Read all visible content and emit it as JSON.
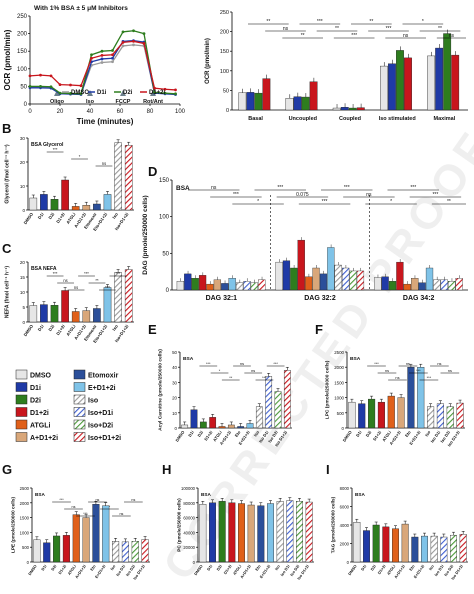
{
  "watermark": "CORRECTED PROOF",
  "colors": {
    "DMSO": "#e6e6e6",
    "D1i": "#1f3aa6",
    "D2i": "#2e7d1e",
    "D1+2i": "#c8161d",
    "ATGLi": "#e0601a",
    "A+D1+2i": "#d9a77a",
    "Etomoxir": "#2b4f9a",
    "E+D1+2i": "#7fc3e8",
    "Iso": "#9a9a9a",
    "Iso+D1i": "#3f5fcf",
    "Iso+D2i": "#4c9a3a",
    "Iso+D1+2i": "#c8161d"
  },
  "legend": {
    "items": [
      {
        "key": "DMSO",
        "label": "DMSO"
      },
      {
        "key": "Etomoxir",
        "label": "Etomoxir"
      },
      {
        "key": "D1i",
        "label": "D1i"
      },
      {
        "key": "E+D1+2i",
        "label": "E+D1+2i"
      },
      {
        "key": "D2i",
        "label": "D2i"
      },
      {
        "key": "Iso",
        "label": "Iso"
      },
      {
        "key": "D1+2i",
        "label": "D1+2i"
      },
      {
        "key": "Iso+D1i",
        "label": "Iso+D1i"
      },
      {
        "key": "ATGLi",
        "label": "ATGLi"
      },
      {
        "key": "Iso+D2i",
        "label": "Iso+D2i"
      },
      {
        "key": "A+D1+2i",
        "label": "A+D1+2i"
      },
      {
        "key": "Iso+D1+2i",
        "label": "Iso+D1+2i"
      }
    ]
  },
  "chart_data": [
    {
      "id": "A-line",
      "type": "line",
      "title": "With 1% BSA ± 5 μM Inhibitors",
      "xlabel": "Time (minutes)",
      "ylabel": "OCR (pmol/min)",
      "xlim": [
        0,
        100
      ],
      "ylim": [
        0,
        250
      ],
      "xticks": [
        0,
        20,
        40,
        60,
        80,
        100
      ],
      "yticks": [
        0,
        50,
        100,
        150,
        200,
        250
      ],
      "injections": [
        {
          "label": "Oligo",
          "x": 18
        },
        {
          "label": "Iso",
          "x": 40
        },
        {
          "label": "FCCP",
          "x": 62
        },
        {
          "label": "Rot/Ant",
          "x": 82
        }
      ],
      "legend": [
        "DMSO",
        "D1i",
        "D2i",
        "D1+2i"
      ],
      "x": [
        0,
        7,
        14,
        20,
        27,
        34,
        41,
        48,
        55,
        62,
        69,
        76,
        83,
        90,
        97
      ],
      "series": [
        {
          "name": "DMSO",
          "color": "#9a9a9a",
          "values": [
            48,
            48,
            47,
            30,
            29,
            28,
            110,
            118,
            120,
            165,
            168,
            165,
            32,
            30,
            28
          ]
        },
        {
          "name": "D1i",
          "color": "#1f3aa6",
          "values": [
            46,
            46,
            45,
            29,
            28,
            27,
            120,
            128,
            130,
            178,
            180,
            176,
            31,
            29,
            27
          ]
        },
        {
          "name": "D2i",
          "color": "#2e7d1e",
          "values": [
            50,
            50,
            49,
            31,
            30,
            29,
            140,
            150,
            152,
            205,
            208,
            200,
            33,
            31,
            29
          ]
        },
        {
          "name": "D1+2i",
          "color": "#c8161d",
          "values": [
            80,
            82,
            80,
            55,
            54,
            52,
            130,
            138,
            140,
            175,
            178,
            172,
            45,
            42,
            40
          ]
        }
      ]
    },
    {
      "id": "A-bar",
      "type": "bar",
      "ylabel": "OCR (pmol/min)",
      "ylim": [
        0,
        250
      ],
      "yticks": [
        0,
        50,
        100,
        150,
        200,
        250
      ],
      "categories": [
        "Basal",
        "Uncoupled",
        "Coupled",
        "Iso stimulated",
        "Maximal"
      ],
      "series": [
        {
          "name": "DMSO",
          "values": [
            44,
            30,
            5,
            112,
            138
          ]
        },
        {
          "name": "D1i",
          "values": [
            45,
            34,
            7,
            118,
            158
          ]
        },
        {
          "name": "D2i",
          "values": [
            43,
            33,
            5,
            152,
            195
          ]
        },
        {
          "name": "D1+2i",
          "values": [
            80,
            72,
            6,
            133,
            140
          ]
        }
      ],
      "labels": [
        "**",
        "ns",
        "**",
        "***",
        "**",
        "***",
        "**",
        "***",
        "ns",
        "*",
        "**",
        "ns"
      ]
    },
    {
      "id": "B",
      "type": "bar",
      "panel": "B",
      "tag": "BSA Glycerol",
      "ylabel": "Glycerol (fmol cell⁻¹ h⁻¹)",
      "ylim": [
        0,
        30
      ],
      "yticks": [
        0,
        10,
        20,
        30
      ],
      "categories": [
        "DMSO",
        "D1i",
        "D2i",
        "D1+2i",
        "ATGLi",
        "A+D1+2i",
        "Etomoxir",
        "Eto+D1+2i",
        "Iso",
        "Iso+D1+2i"
      ],
      "values": [
        5,
        6.5,
        4.5,
        12.5,
        1.5,
        2,
        2.5,
        6.5,
        28,
        27
      ],
      "labels": [
        "***",
        "*",
        "ns"
      ]
    },
    {
      "id": "C",
      "type": "bar",
      "panel": "C",
      "tag": "BSA NEFA",
      "ylabel": "NEFA (fmol cell⁻¹ h⁻¹)",
      "ylim": [
        0,
        20
      ],
      "yticks": [
        0,
        5,
        10,
        15,
        20
      ],
      "categories": [
        "DMSO",
        "D1i",
        "D2i",
        "D1+2i",
        "ATGLi",
        "A+D1+2i",
        "Etomoxir",
        "Eto+D1+2i",
        "Iso",
        "Iso+D1+2i"
      ],
      "values": [
        5.5,
        5.8,
        5.6,
        10.5,
        3.5,
        3.8,
        4.5,
        11.5,
        16.5,
        17.5
      ],
      "labels": [
        "***",
        "ns",
        "ns",
        "***",
        "**",
        "***",
        "***"
      ]
    },
    {
      "id": "D",
      "type": "bar",
      "panel": "D",
      "tag": "BSA",
      "ylabel": "DAG (pmole/250000 cells)",
      "ylim": [
        0,
        150
      ],
      "yticks": [
        0,
        50,
        100,
        150
      ],
      "categories": [
        "DAG 32:1",
        "DAG 32:2",
        "DAG 34:2"
      ],
      "series": [
        {
          "name": "DMSO",
          "values": [
            12,
            38,
            17
          ]
        },
        {
          "name": "D1i",
          "values": [
            22,
            40,
            18
          ]
        },
        {
          "name": "D2i",
          "values": [
            16,
            30,
            12
          ]
        },
        {
          "name": "D1+2i",
          "values": [
            20,
            68,
            38
          ]
        },
        {
          "name": "ATGLi",
          "values": [
            8,
            18,
            8
          ]
        },
        {
          "name": "A+D1+2i",
          "values": [
            14,
            30,
            16
          ]
        },
        {
          "name": "Etomoxir",
          "values": [
            9,
            22,
            10
          ]
        },
        {
          "name": "E+D1+2i",
          "values": [
            16,
            58,
            30
          ]
        },
        {
          "name": "Iso",
          "values": [
            10,
            34,
            14
          ]
        },
        {
          "name": "Iso+D1i",
          "values": [
            12,
            30,
            14
          ]
        },
        {
          "name": "Iso+D2i",
          "values": [
            10,
            26,
            12
          ]
        },
        {
          "name": "Iso+D1+2i",
          "values": [
            14,
            26,
            16
          ]
        }
      ],
      "labels": [
        "ns",
        "***",
        "*",
        "***",
        "0.075",
        "***",
        "***",
        "ns",
        "*",
        "***",
        "***",
        "**"
      ]
    },
    {
      "id": "E",
      "type": "bar",
      "panel": "E",
      "tag": "BSA",
      "ylabel": "Acyl Carnitine (pmole/250000 cells)",
      "ylim": [
        0,
        50
      ],
      "yticks": [
        0,
        10,
        20,
        30,
        40,
        50
      ],
      "categories": [
        "DMSO",
        "D1i",
        "D2i",
        "D1+2i",
        "ATGLi",
        "A+D1+2i",
        "Eto",
        "E+D1+2i",
        "Iso",
        "Iso D1i",
        "Iso D2i",
        "Iso D1+2i"
      ],
      "values": [
        2,
        12,
        4,
        7,
        1,
        2,
        1,
        3,
        14,
        34,
        24,
        38
      ],
      "labels": [
        "***",
        "*",
        "**",
        "ns",
        "ns",
        "***",
        "***"
      ]
    },
    {
      "id": "F",
      "type": "bar",
      "panel": "F",
      "tag": "BSA",
      "ylabel": "LPC (pmole/250000 cells)",
      "ylim": [
        0,
        2500
      ],
      "yticks": [
        0,
        500,
        1000,
        1500,
        2000,
        2500
      ],
      "categories": [
        "DMSO",
        "D1i",
        "D2i",
        "D1+2i",
        "ATGLi",
        "A+D1+2i",
        "Eto",
        "E+D1+2i",
        "Iso",
        "Iso D1i",
        "Iso D2i",
        "Iso D1+2i"
      ],
      "values": [
        850,
        800,
        950,
        850,
        1050,
        1000,
        2000,
        2000,
        700,
        800,
        700,
        820
      ],
      "labels": [
        "***",
        "ns",
        "ns",
        "ns",
        "***",
        "***",
        "ns",
        "ns"
      ]
    },
    {
      "id": "G",
      "type": "bar",
      "panel": "G",
      "tag": "BSA",
      "ylabel": "LPE (pmole/250000 cells)",
      "ylim": [
        0,
        2500
      ],
      "yticks": [
        0,
        500,
        1000,
        1500,
        2000,
        2500
      ],
      "categories": [
        "DMSO",
        "D1i",
        "D2i",
        "D1+2i",
        "ATGLi",
        "A+D1+2i",
        "Eto",
        "E+D1+2i",
        "Iso",
        "Iso D1i",
        "Iso D2i",
        "Iso D1+2i"
      ],
      "values": [
        750,
        650,
        880,
        900,
        1600,
        1500,
        1950,
        1900,
        700,
        680,
        700,
        760
      ],
      "labels": [
        "***",
        "ns",
        "***",
        "ns",
        "*",
        "ns",
        "ns"
      ]
    },
    {
      "id": "H",
      "type": "bar",
      "panel": "H",
      "tag": "BSA",
      "ylabel": "PC (pmole/250000 cells)",
      "ylim": [
        0,
        100000
      ],
      "yticks": [
        0,
        20000,
        40000,
        60000,
        80000,
        100000
      ],
      "categories": [
        "DMSO",
        "D1i",
        "D2i",
        "D1+2i",
        "ATGLi",
        "A+D1+2i",
        "Eto",
        "E+D1+2i",
        "Iso",
        "Iso D1i",
        "Iso D2i",
        "Iso D1+2i"
      ],
      "values": [
        78000,
        80000,
        82000,
        80000,
        79000,
        77000,
        76000,
        79000,
        82000,
        83000,
        82000,
        81000
      ],
      "labels": []
    },
    {
      "id": "I",
      "type": "bar",
      "panel": "I",
      "tag": "BSA",
      "ylabel": "TAG (pmole/250000 cells)",
      "ylim": [
        0,
        8000
      ],
      "yticks": [
        0,
        2000,
        4000,
        6000,
        8000
      ],
      "categories": [
        "DMSO",
        "D1i",
        "D2i",
        "D1+2i",
        "ATGLi",
        "A+D1+2i",
        "Eto",
        "E+D1+2i",
        "Iso",
        "Iso D1i",
        "Iso D2i",
        "Iso D1+2i"
      ],
      "values": [
        4300,
        3400,
        4000,
        3800,
        3600,
        4100,
        2700,
        2800,
        2800,
        2700,
        2900,
        3000
      ],
      "labels": []
    }
  ]
}
